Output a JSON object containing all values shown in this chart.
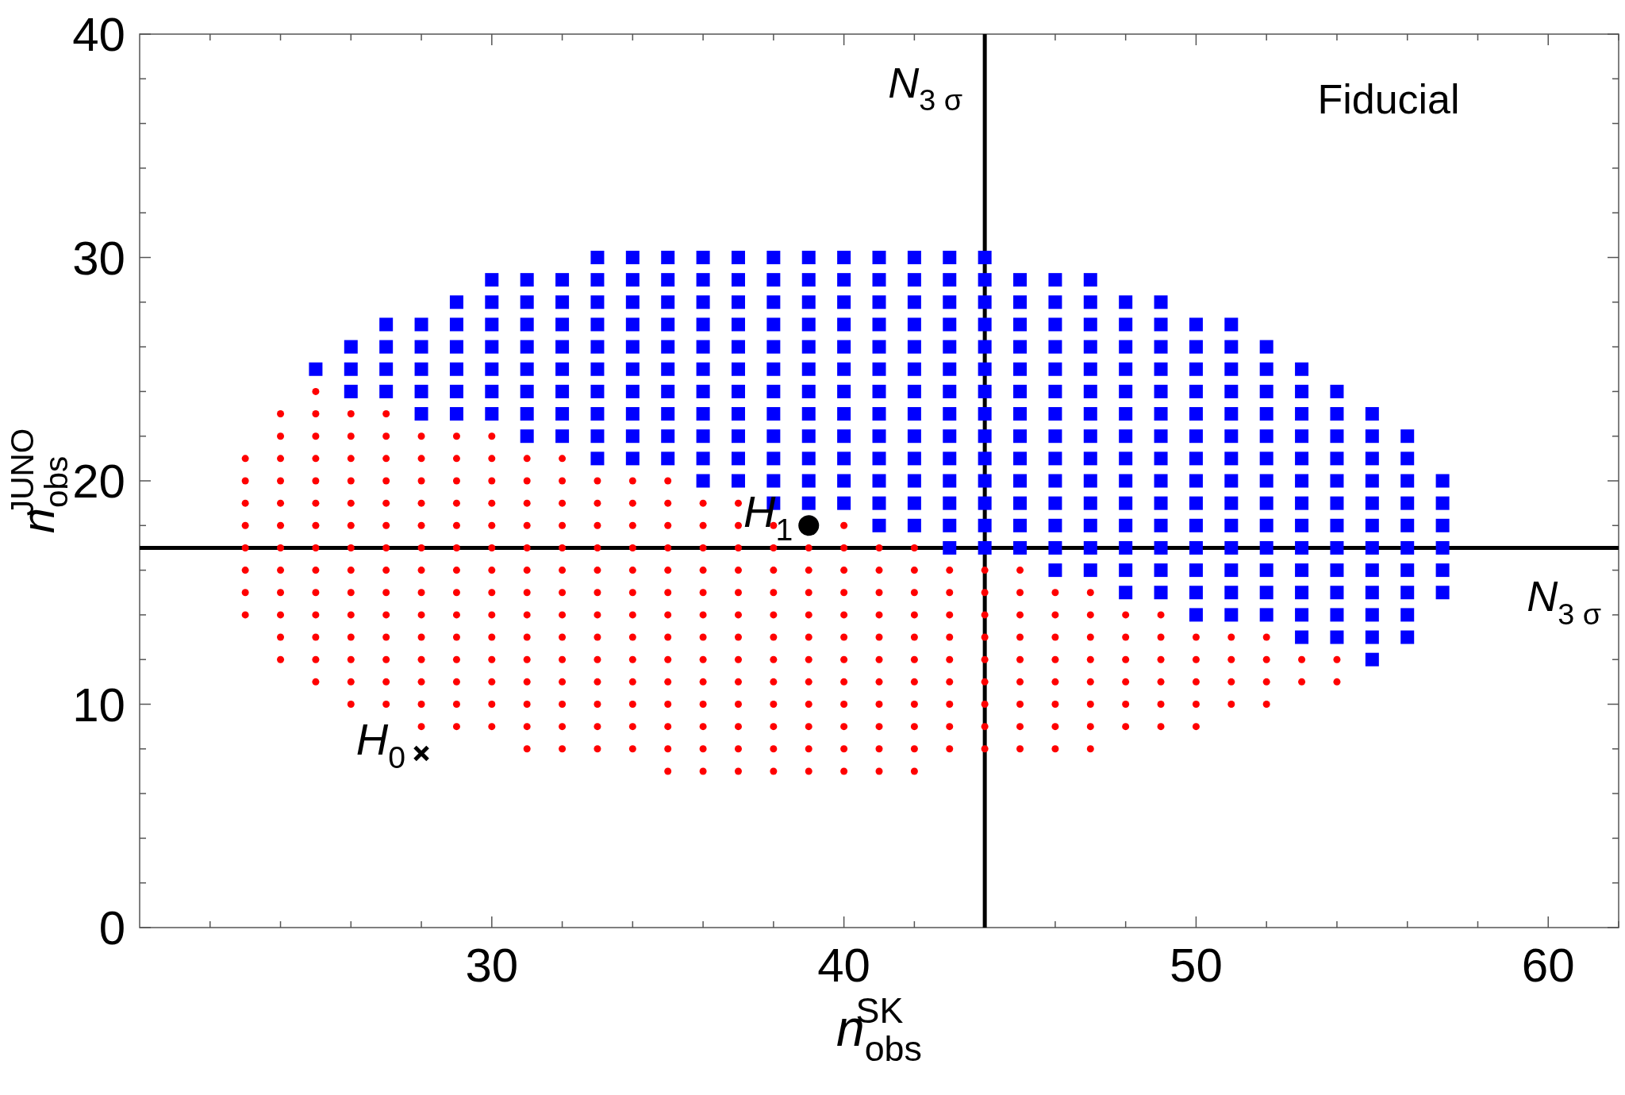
{
  "chart_data": {
    "type": "scatter",
    "xlabel": "n$_{obs}$$^{SK}$",
    "ylabel": "n$_{obs}$$^{JUNO}$",
    "xlim": [
      20,
      62
    ],
    "ylim": [
      0,
      40
    ],
    "xticks": [
      {
        "value": 22,
        "label": null
      },
      {
        "value": 24,
        "label": null
      },
      {
        "value": 26,
        "label": null
      },
      {
        "value": 28,
        "label": null
      },
      30,
      {
        "value": 32,
        "label": null
      },
      {
        "value": 34,
        "label": null
      },
      {
        "value": 36,
        "label": null
      },
      {
        "value": 38,
        "label": null
      },
      40,
      {
        "value": 42,
        "label": null
      },
      {
        "value": 44,
        "label": null
      },
      {
        "value": 46,
        "label": null
      },
      {
        "value": 48,
        "label": null
      },
      50,
      {
        "value": 52,
        "label": null
      },
      {
        "value": 54,
        "label": null
      },
      {
        "value": 56,
        "label": null
      },
      {
        "value": 58,
        "label": null
      },
      60,
      {
        "value": 62,
        "label": null
      }
    ],
    "yticks": [
      0,
      {
        "value": 2,
        "label": null
      },
      {
        "value": 4,
        "label": null
      },
      {
        "value": 6,
        "label": null
      },
      {
        "value": 8,
        "label": null
      },
      10,
      {
        "value": 12,
        "label": null
      },
      {
        "value": 14,
        "label": null
      },
      {
        "value": 16,
        "label": null
      },
      {
        "value": 18,
        "label": null
      },
      20,
      {
        "value": 22,
        "label": null
      },
      {
        "value": 24,
        "label": null
      },
      {
        "value": 26,
        "label": null
      },
      {
        "value": 28,
        "label": null
      },
      30,
      {
        "value": 32,
        "label": null
      },
      {
        "value": 34,
        "label": null
      },
      {
        "value": 36,
        "label": null
      },
      {
        "value": 38,
        "label": null
      },
      40
    ],
    "grid": false,
    "series": [
      {
        "color": "#ff0000",
        "marker": "circle",
        "x": [
          23,
          23,
          23,
          23,
          23,
          23,
          23,
          23,
          24,
          24,
          24,
          24,
          24,
          24,
          24,
          24,
          24,
          24,
          24,
          24,
          25,
          25,
          25,
          25,
          25,
          25,
          25,
          25,
          25,
          25,
          25,
          25,
          25,
          25,
          26,
          26,
          26,
          26,
          26,
          26,
          26,
          26,
          26,
          26,
          26,
          26,
          26,
          26,
          27,
          27,
          27,
          27,
          27,
          27,
          27,
          27,
          27,
          27,
          27,
          27,
          27,
          27,
          28,
          28,
          28,
          28,
          28,
          28,
          28,
          28,
          28,
          28,
          28,
          28,
          28,
          28,
          29,
          29,
          29,
          29,
          29,
          29,
          29,
          29,
          29,
          29,
          29,
          29,
          29,
          29,
          30,
          30,
          30,
          30,
          30,
          30,
          30,
          30,
          30,
          30,
          30,
          30,
          30,
          30,
          31,
          31,
          31,
          31,
          31,
          31,
          31,
          31,
          31,
          31,
          31,
          31,
          31,
          31,
          32,
          32,
          32,
          32,
          32,
          32,
          32,
          32,
          32,
          32,
          32,
          32,
          32,
          32,
          33,
          33,
          33,
          33,
          33,
          33,
          33,
          33,
          33,
          33,
          33,
          33,
          33,
          34,
          34,
          34,
          34,
          34,
          34,
          34,
          34,
          34,
          34,
          34,
          34,
          34,
          35,
          35,
          35,
          35,
          35,
          35,
          35,
          35,
          35,
          35,
          35,
          35,
          35,
          35,
          36,
          36,
          36,
          36,
          36,
          36,
          36,
          36,
          36,
          36,
          36,
          36,
          36,
          37,
          37,
          37,
          37,
          37,
          37,
          37,
          37,
          37,
          37,
          37,
          37,
          37,
          38,
          38,
          38,
          38,
          38,
          38,
          38,
          38,
          38,
          38,
          38,
          38,
          39,
          39,
          39,
          39,
          39,
          39,
          39,
          39,
          39,
          39,
          39,
          40,
          40,
          40,
          40,
          40,
          40,
          40,
          40,
          40,
          40,
          40,
          40,
          41,
          41,
          41,
          41,
          41,
          41,
          41,
          41,
          41,
          41,
          41,
          42,
          42,
          42,
          42,
          42,
          42,
          42,
          42,
          42,
          42,
          42,
          43,
          43,
          43,
          43,
          43,
          43,
          43,
          43,
          43,
          44,
          44,
          44,
          44,
          44,
          44,
          44,
          44,
          44,
          45,
          45,
          45,
          45,
          45,
          45,
          45,
          45,
          45,
          46,
          46,
          46,
          46,
          46,
          46,
          46,
          46,
          47,
          47,
          47,
          47,
          47,
          47,
          47,
          47,
          48,
          48,
          48,
          48,
          48,
          48,
          49,
          49,
          49,
          49,
          49,
          49,
          50,
          50,
          50,
          50,
          50,
          51,
          51,
          51,
          51,
          52,
          52,
          52,
          52,
          53,
          53,
          54,
          54
        ],
        "values": [
          14,
          15,
          16,
          17,
          18,
          19,
          20,
          21,
          12,
          13,
          14,
          15,
          16,
          17,
          18,
          19,
          20,
          21,
          22,
          23,
          11,
          12,
          13,
          14,
          15,
          16,
          17,
          18,
          19,
          20,
          21,
          22,
          23,
          24,
          10,
          11,
          12,
          13,
          14,
          15,
          16,
          17,
          18,
          19,
          20,
          21,
          22,
          23,
          10,
          11,
          12,
          13,
          14,
          15,
          16,
          17,
          18,
          19,
          20,
          21,
          22,
          23,
          9,
          10,
          11,
          12,
          13,
          14,
          15,
          16,
          17,
          18,
          19,
          20,
          21,
          22,
          9,
          10,
          11,
          12,
          13,
          14,
          15,
          16,
          17,
          18,
          19,
          20,
          21,
          22,
          9,
          10,
          11,
          12,
          13,
          14,
          15,
          16,
          17,
          18,
          19,
          20,
          21,
          22,
          8,
          9,
          10,
          11,
          12,
          13,
          14,
          15,
          16,
          17,
          18,
          19,
          20,
          21,
          8,
          9,
          10,
          11,
          12,
          13,
          14,
          15,
          16,
          17,
          18,
          19,
          20,
          21,
          8,
          9,
          10,
          11,
          12,
          13,
          14,
          15,
          16,
          17,
          18,
          19,
          20,
          8,
          9,
          10,
          11,
          12,
          13,
          14,
          15,
          16,
          17,
          18,
          19,
          20,
          7,
          8,
          9,
          10,
          11,
          12,
          13,
          14,
          15,
          16,
          17,
          18,
          19,
          20,
          7,
          8,
          9,
          10,
          11,
          12,
          13,
          14,
          15,
          16,
          17,
          18,
          19,
          7,
          8,
          9,
          10,
          11,
          12,
          13,
          14,
          15,
          16,
          17,
          18,
          19,
          7,
          8,
          9,
          10,
          11,
          12,
          13,
          14,
          15,
          16,
          17,
          18,
          7,
          8,
          9,
          10,
          11,
          12,
          13,
          14,
          15,
          16,
          17,
          7,
          8,
          9,
          10,
          11,
          12,
          13,
          14,
          15,
          16,
          17,
          18,
          7,
          8,
          9,
          10,
          11,
          12,
          13,
          14,
          15,
          16,
          17,
          7,
          8,
          9,
          10,
          11,
          12,
          13,
          14,
          15,
          16,
          17,
          8,
          9,
          10,
          11,
          12,
          13,
          14,
          15,
          16,
          8,
          9,
          10,
          11,
          12,
          13,
          14,
          15,
          16,
          8,
          9,
          10,
          11,
          12,
          13,
          14,
          15,
          16,
          8,
          9,
          10,
          11,
          12,
          13,
          14,
          15,
          8,
          9,
          10,
          11,
          12,
          13,
          14,
          15,
          9,
          10,
          11,
          12,
          13,
          14,
          9,
          10,
          11,
          12,
          13,
          14,
          9,
          10,
          11,
          12,
          13,
          10,
          11,
          12,
          13,
          10,
          11,
          12,
          13,
          11,
          12,
          11,
          12
        ]
      },
      {
        "color": "#0000ff",
        "marker": "square",
        "x": [
          25,
          26,
          26,
          26,
          27,
          27,
          27,
          27,
          28,
          28,
          28,
          28,
          28,
          29,
          29,
          29,
          29,
          29,
          29,
          30,
          30,
          30,
          30,
          30,
          30,
          30,
          31,
          31,
          31,
          31,
          31,
          31,
          31,
          31,
          32,
          32,
          32,
          32,
          32,
          32,
          32,
          32,
          33,
          33,
          33,
          33,
          33,
          33,
          33,
          33,
          33,
          33,
          34,
          34,
          34,
          34,
          34,
          34,
          34,
          34,
          34,
          34,
          35,
          35,
          35,
          35,
          35,
          35,
          35,
          35,
          35,
          35,
          36,
          36,
          36,
          36,
          36,
          36,
          36,
          36,
          36,
          36,
          36,
          37,
          37,
          37,
          37,
          37,
          37,
          37,
          37,
          37,
          37,
          37,
          38,
          38,
          38,
          38,
          38,
          38,
          38,
          38,
          38,
          38,
          38,
          38,
          39,
          39,
          39,
          39,
          39,
          39,
          39,
          39,
          39,
          39,
          39,
          39,
          40,
          40,
          40,
          40,
          40,
          40,
          40,
          40,
          40,
          40,
          40,
          40,
          41,
          41,
          41,
          41,
          41,
          41,
          41,
          41,
          41,
          41,
          41,
          41,
          41,
          42,
          42,
          42,
          42,
          42,
          42,
          42,
          42,
          42,
          42,
          42,
          42,
          42,
          43,
          43,
          43,
          43,
          43,
          43,
          43,
          43,
          43,
          43,
          43,
          43,
          43,
          43,
          44,
          44,
          44,
          44,
          44,
          44,
          44,
          44,
          44,
          44,
          44,
          44,
          44,
          44,
          45,
          45,
          45,
          45,
          45,
          45,
          45,
          45,
          45,
          45,
          45,
          45,
          45,
          46,
          46,
          46,
          46,
          46,
          46,
          46,
          46,
          46,
          46,
          46,
          46,
          46,
          46,
          47,
          47,
          47,
          47,
          47,
          47,
          47,
          47,
          47,
          47,
          47,
          47,
          47,
          47,
          48,
          48,
          48,
          48,
          48,
          48,
          48,
          48,
          48,
          48,
          48,
          48,
          48,
          48,
          49,
          49,
          49,
          49,
          49,
          49,
          49,
          49,
          49,
          49,
          49,
          49,
          49,
          49,
          50,
          50,
          50,
          50,
          50,
          50,
          50,
          50,
          50,
          50,
          50,
          50,
          50,
          50,
          51,
          51,
          51,
          51,
          51,
          51,
          51,
          51,
          51,
          51,
          51,
          51,
          51,
          51,
          52,
          52,
          52,
          52,
          52,
          52,
          52,
          52,
          52,
          52,
          52,
          52,
          52,
          53,
          53,
          53,
          53,
          53,
          53,
          53,
          53,
          53,
          53,
          53,
          53,
          53,
          54,
          54,
          54,
          54,
          54,
          54,
          54,
          54,
          54,
          54,
          54,
          54,
          55,
          55,
          55,
          55,
          55,
          55,
          55,
          55,
          55,
          55,
          55,
          55,
          56,
          56,
          56,
          56,
          56,
          56,
          56,
          56,
          56,
          56,
          57,
          57,
          57,
          57,
          57,
          57
        ],
        "values": [
          25,
          24,
          25,
          26,
          24,
          25,
          26,
          27,
          23,
          24,
          25,
          26,
          27,
          23,
          24,
          25,
          26,
          27,
          28,
          23,
          24,
          25,
          26,
          27,
          28,
          29,
          22,
          23,
          24,
          25,
          26,
          27,
          28,
          29,
          22,
          23,
          24,
          25,
          26,
          27,
          28,
          29,
          21,
          22,
          23,
          24,
          25,
          26,
          27,
          28,
          29,
          30,
          21,
          22,
          23,
          24,
          25,
          26,
          27,
          28,
          29,
          30,
          21,
          22,
          23,
          24,
          25,
          26,
          27,
          28,
          29,
          30,
          20,
          21,
          22,
          23,
          24,
          25,
          26,
          27,
          28,
          29,
          30,
          20,
          21,
          22,
          23,
          24,
          25,
          26,
          27,
          28,
          29,
          30,
          19,
          20,
          21,
          22,
          23,
          24,
          25,
          26,
          27,
          28,
          29,
          30,
          19,
          20,
          21,
          22,
          23,
          24,
          25,
          26,
          27,
          28,
          29,
          30,
          19,
          20,
          21,
          22,
          23,
          24,
          25,
          26,
          27,
          28,
          29,
          30,
          18,
          19,
          20,
          21,
          22,
          23,
          24,
          25,
          26,
          27,
          28,
          29,
          30,
          18,
          19,
          20,
          21,
          22,
          23,
          24,
          25,
          26,
          27,
          28,
          29,
          30,
          17,
          18,
          19,
          20,
          21,
          22,
          23,
          24,
          25,
          26,
          27,
          28,
          29,
          30,
          17,
          18,
          19,
          20,
          21,
          22,
          23,
          24,
          25,
          26,
          27,
          28,
          29,
          30,
          17,
          18,
          19,
          20,
          21,
          22,
          23,
          24,
          25,
          26,
          27,
          28,
          29,
          16,
          17,
          18,
          19,
          20,
          21,
          22,
          23,
          24,
          25,
          26,
          27,
          28,
          29,
          16,
          17,
          18,
          19,
          20,
          21,
          22,
          23,
          24,
          25,
          26,
          27,
          28,
          29,
          15,
          16,
          17,
          18,
          19,
          20,
          21,
          22,
          23,
          24,
          25,
          26,
          27,
          28,
          15,
          16,
          17,
          18,
          19,
          20,
          21,
          22,
          23,
          24,
          25,
          26,
          27,
          28,
          14,
          15,
          16,
          17,
          18,
          19,
          20,
          21,
          22,
          23,
          24,
          25,
          26,
          27,
          14,
          15,
          16,
          17,
          18,
          19,
          20,
          21,
          22,
          23,
          24,
          25,
          26,
          27,
          14,
          15,
          16,
          17,
          18,
          19,
          20,
          21,
          22,
          23,
          24,
          25,
          26,
          13,
          14,
          15,
          16,
          17,
          18,
          19,
          20,
          21,
          22,
          23,
          24,
          25,
          13,
          14,
          15,
          16,
          17,
          18,
          19,
          20,
          21,
          22,
          23,
          24,
          12,
          13,
          14,
          15,
          16,
          17,
          18,
          19,
          20,
          21,
          22,
          23,
          13,
          14,
          15,
          16,
          17,
          18,
          19,
          20,
          21,
          22,
          15,
          16,
          17,
          18,
          19,
          20
        ]
      },
      {
        "color": "#000000",
        "marker": "circle",
        "x": [
          39
        ],
        "values": [
          18
        ]
      },
      {
        "color": "#000000",
        "marker": "cross",
        "x": [
          28
        ],
        "values": [
          7.8
        ]
      }
    ],
    "ref_lines": [
      {
        "axis": "x",
        "value": 44,
        "label": "N$_{3 σ}$",
        "color": "#000000"
      },
      {
        "axis": "y",
        "value": 17,
        "label": "N$_{3 σ}$",
        "color": "#000000"
      }
    ],
    "annotations": [
      {
        "text": "H$_{1}$",
        "x": 39,
        "y": 18
      },
      {
        "text": "H$_{0}$",
        "x": 28,
        "y": 7.8
      },
      "Fiducial"
    ]
  }
}
